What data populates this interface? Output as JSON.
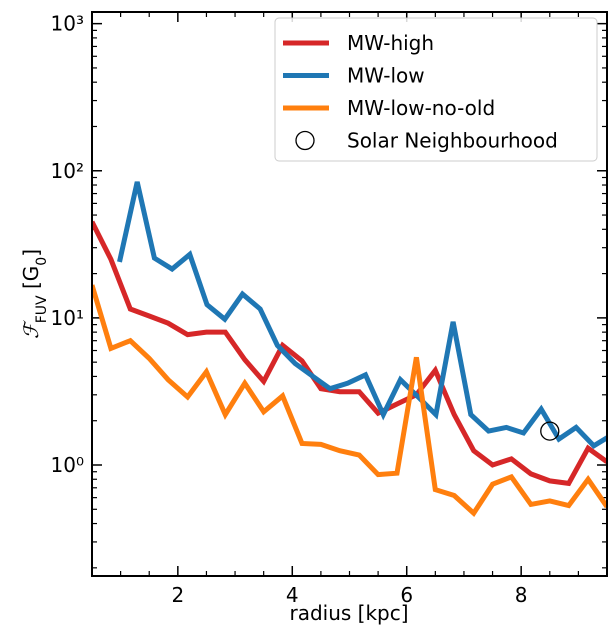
{
  "chart_data": {
    "type": "line",
    "xlabel": "radius [kpc]",
    "ylabel_parts": [
      "ℱ",
      "FUV",
      " [G",
      "0",
      "]"
    ],
    "log_y": true,
    "xlim": [
      0.5,
      9.5
    ],
    "ylim": [
      0.176,
      1200
    ],
    "xticks": [
      2,
      4,
      6,
      8
    ],
    "xminor_ticks": [
      1,
      1.5,
      2.5,
      3,
      3.5,
      4.5,
      5,
      5.5,
      6.5,
      7,
      7.5,
      8.5,
      9
    ],
    "yticks": [
      {
        "value": 1,
        "label": "10⁰"
      },
      {
        "value": 10,
        "label": "10¹"
      },
      {
        "value": 100,
        "label": "10²"
      },
      {
        "value": 1000,
        "label": "10³"
      }
    ],
    "yminor_ticks": [
      0.2,
      0.3,
      0.4,
      0.5,
      0.6,
      0.7,
      0.8,
      0.9,
      2,
      3,
      4,
      5,
      6,
      7,
      8,
      9,
      20,
      30,
      40,
      50,
      60,
      70,
      80,
      90,
      200,
      300,
      400,
      500,
      600,
      700,
      800,
      900
    ],
    "legend": "upper right",
    "x": [
      0.5,
      0.83,
      1.17,
      1.5,
      1.83,
      2.17,
      2.5,
      2.83,
      3.17,
      3.5,
      3.83,
      4.17,
      4.5,
      4.83,
      5.17,
      5.5,
      5.83,
      6.17,
      6.5,
      6.83,
      7.17,
      7.5,
      7.83,
      8.17,
      8.5,
      8.83,
      9.17,
      9.5
    ],
    "series": [
      {
        "name": "MW-high",
        "color": "#d62728",
        "values": [
          45,
          25,
          11.5,
          10.3,
          9.2,
          7.7,
          8.0,
          8.0,
          5.2,
          3.7,
          6.5,
          5.1,
          3.3,
          3.15,
          3.15,
          2.25,
          2.6,
          3.0,
          4.4,
          2.2,
          1.25,
          1.0,
          1.1,
          0.87,
          0.78,
          0.75,
          1.3,
          1.05
        ]
      },
      {
        "name": "MW-low",
        "color": "#1f77b4",
        "x": [
          0.98,
          1.29,
          1.59,
          1.9,
          2.21,
          2.51,
          2.82,
          3.13,
          3.44,
          3.74,
          4.05,
          4.36,
          4.66,
          4.97,
          5.28,
          5.59,
          5.89,
          6.2,
          6.51,
          6.81,
          7.12,
          7.43,
          7.74,
          8.04,
          8.35,
          8.66,
          8.96,
          9.27,
          9.58
        ],
        "values": [
          24,
          84,
          25.5,
          21.5,
          27,
          12.3,
          9.8,
          14.5,
          11.5,
          6.5,
          4.9,
          4.0,
          3.3,
          3.6,
          4.1,
          2.2,
          3.8,
          2.9,
          2.2,
          9.4,
          2.2,
          1.7,
          1.8,
          1.65,
          2.4,
          1.5,
          1.8,
          1.35,
          1.6
        ]
      },
      {
        "name": "MW-low-no-old",
        "color": "#ff7f0e",
        "values": [
          16.7,
          6.2,
          7.0,
          5.3,
          3.8,
          2.9,
          4.3,
          2.2,
          3.6,
          2.3,
          2.95,
          1.4,
          1.38,
          1.25,
          1.17,
          0.86,
          0.88,
          5.4,
          0.68,
          0.62,
          0.47,
          0.74,
          0.83,
          0.54,
          0.57,
          0.53,
          0.8,
          0.52
        ]
      },
      {
        "name": "Solar Neighbourhood",
        "color": "#000000",
        "marker": "circle",
        "x": [
          8.5
        ],
        "values": [
          1.7
        ]
      }
    ]
  }
}
